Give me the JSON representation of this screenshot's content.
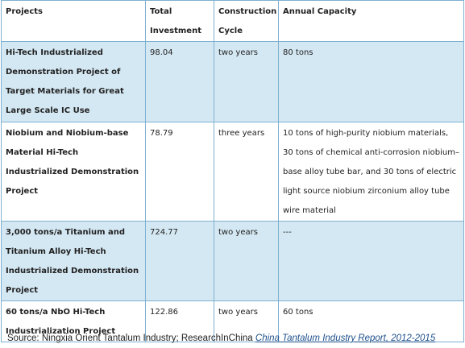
{
  "table": {
    "headers": [
      "Projects",
      "Total Investment",
      "Construction Cycle",
      "Annual Capacity"
    ],
    "rows": [
      {
        "project": "Hi-Tech Industrialized Demonstration Project of Target Materials for Great Large Scale IC Use",
        "investment": "98.04",
        "cycle": "two years",
        "capacity": "80 tons"
      },
      {
        "project": "Niobium and Niobium-base Material Hi-Tech Industrialized Demonstration Project",
        "investment": "78.79",
        "cycle": "three years",
        "capacity": "10 tons of high-purity niobium materials, 30 tons of chemical anti-corrosion niobium–base alloy tube bar, and 30 tons of electric light source niobium zirconium alloy tube wire material"
      },
      {
        "project": "3,000 tons/a Titanium and Titanium Alloy Hi-Tech Industrialized Demonstration Project",
        "investment": "724.77",
        "cycle": "two years",
        "capacity": "---"
      },
      {
        "project": "60 tons/a NbO Hi-Tech Industrialization Project",
        "investment": "122.86",
        "cycle": "two years",
        "capacity": "60 tons"
      }
    ]
  },
  "source": {
    "prefix": "Source: Ningxia Orient Tantalum Industry; ResearchInChina ",
    "report": "China Tantalum Industry Report, 2012-2015"
  },
  "colors": {
    "shaded_row": "#d4e8f3",
    "border": "#7fb0d0",
    "link": "#1c4f8c"
  }
}
